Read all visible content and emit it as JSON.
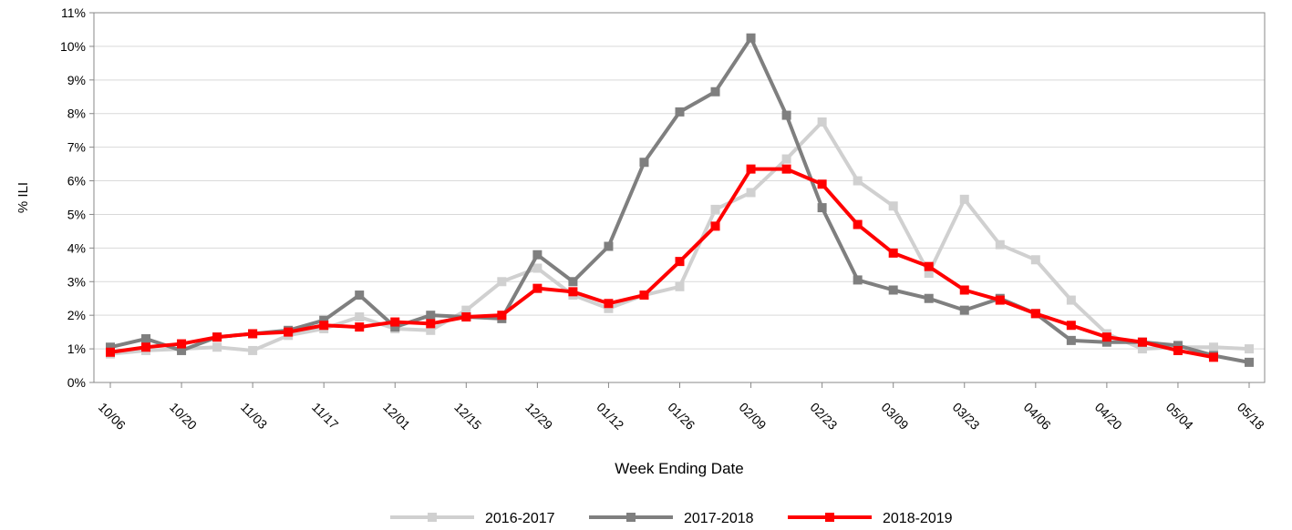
{
  "chart_data": {
    "type": "line",
    "y_axis_label": "% ILI",
    "x_axis_label": "Week Ending Date",
    "categories": [
      "10/06",
      null,
      "10/20",
      null,
      "11/03",
      null,
      "11/17",
      null,
      "12/01",
      null,
      "12/15",
      null,
      "12/29",
      null,
      "01/12",
      null,
      "01/26",
      null,
      "02/09",
      null,
      "02/23",
      null,
      "03/09",
      null,
      "03/23",
      null,
      "04/06",
      null,
      "04/20",
      null,
      "05/04",
      null,
      "05/18"
    ],
    "series": [
      {
        "name": "2016-2017",
        "color": "#d0d0d0",
        "values": [
          0.85,
          0.95,
          1.0,
          1.05,
          0.95,
          1.4,
          1.6,
          1.95,
          1.6,
          1.55,
          2.15,
          3.0,
          3.4,
          2.6,
          2.2,
          2.6,
          2.85,
          5.15,
          5.65,
          6.65,
          7.75,
          6.0,
          5.25,
          3.25,
          5.45,
          4.1,
          3.65,
          2.45,
          1.45,
          1.0,
          1.05,
          1.05,
          1.0
        ]
      },
      {
        "name": "2017-2018",
        "color": "#7f7f7f",
        "values": [
          1.05,
          1.3,
          0.95,
          1.35,
          1.45,
          1.55,
          1.85,
          2.6,
          1.65,
          2.0,
          1.95,
          1.9,
          3.8,
          3.0,
          4.05,
          6.55,
          8.05,
          8.65,
          10.25,
          7.95,
          5.2,
          3.05,
          2.75,
          2.5,
          2.15,
          2.5,
          2.05,
          1.25,
          1.2,
          1.2,
          1.1,
          0.8,
          0.6
        ]
      },
      {
        "name": "2018-2019",
        "color": "#ff0000",
        "values": [
          0.9,
          1.05,
          1.15,
          1.35,
          1.45,
          1.5,
          1.7,
          1.65,
          1.8,
          1.75,
          1.95,
          2.0,
          2.8,
          2.7,
          2.35,
          2.6,
          3.6,
          4.65,
          6.35,
          6.35,
          5.9,
          4.7,
          3.85,
          3.45,
          2.75,
          2.45,
          2.05,
          1.7,
          1.35,
          1.2,
          0.95,
          0.75,
          null
        ]
      }
    ],
    "ylim": [
      0,
      11
    ],
    "yticks": [
      {
        "value": 0,
        "label": "0%"
      },
      {
        "value": 1,
        "label": "1%"
      },
      {
        "value": 2,
        "label": "2%"
      },
      {
        "value": 3,
        "label": "3%"
      },
      {
        "value": 4,
        "label": "4%"
      },
      {
        "value": 5,
        "label": "5%"
      },
      {
        "value": 6,
        "label": "6%"
      },
      {
        "value": 7,
        "label": "7%"
      },
      {
        "value": 8,
        "label": "8%"
      },
      {
        "value": 9,
        "label": "9%"
      },
      {
        "value": 10,
        "label": "10%"
      },
      {
        "value": 11,
        "label": "11%"
      }
    ],
    "grid": true,
    "legend": "bottom"
  }
}
